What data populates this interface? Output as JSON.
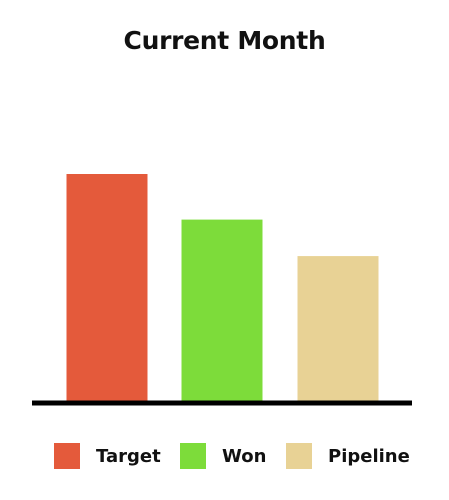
{
  "chart_data": {
    "type": "bar",
    "title": "Current Month",
    "categories": [
      "Target",
      "Won",
      "Pipeline"
    ],
    "values": [
      100,
      80,
      64
    ],
    "colors": [
      "#e45a3b",
      "#7ddc3a",
      "#e8d295"
    ],
    "ylim": [
      0,
      100
    ],
    "grid": false,
    "legend_position": "bottom"
  }
}
